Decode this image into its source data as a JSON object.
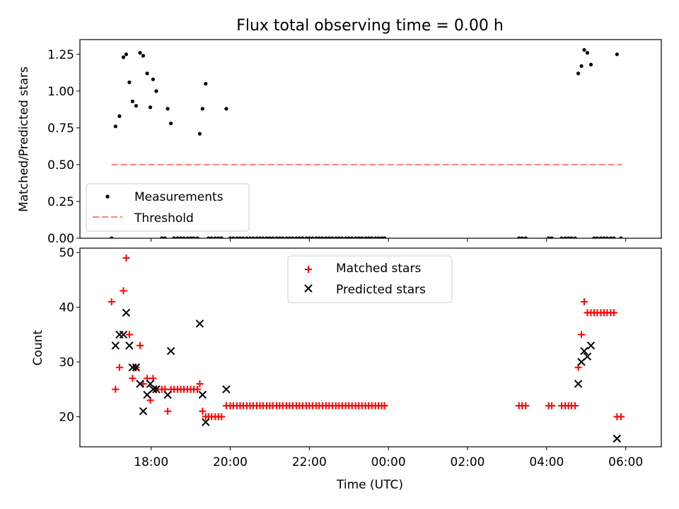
{
  "chart_data": [
    {
      "type": "scatter",
      "title": "Flux total observing time = 0.00 h",
      "xlabel": "",
      "ylabel": "Matched/Predicted stars",
      "xlim": [
        16.2,
        30.9
      ],
      "ylim": [
        0,
        1.35
      ],
      "y_ticks": [
        0.0,
        0.25,
        0.5,
        0.75,
        1.0,
        1.25
      ],
      "y_tick_labels": [
        "0.00",
        "0.25",
        "0.50",
        "0.75",
        "1.00",
        "1.25"
      ],
      "x_ticks": [
        18,
        20,
        22,
        24,
        26,
        28,
        30
      ],
      "legend_position": "lower-left",
      "series": [
        {
          "name": "Measurements",
          "marker": "dot",
          "color": "#000000",
          "points": [
            [
              17.0,
              0.0
            ],
            [
              17.1,
              0.76
            ],
            [
              17.2,
              0.83
            ],
            [
              17.3,
              1.23
            ],
            [
              17.37,
              1.25
            ],
            [
              17.45,
              1.06
            ],
            [
              17.53,
              0.93
            ],
            [
              17.62,
              0.9
            ],
            [
              17.72,
              1.26
            ],
            [
              17.8,
              1.24
            ],
            [
              17.9,
              1.12
            ],
            [
              17.98,
              0.89
            ],
            [
              18.05,
              1.08
            ],
            [
              18.13,
              1.0
            ],
            [
              18.27,
              0.0
            ],
            [
              18.35,
              0.0
            ],
            [
              18.42,
              0.88
            ],
            [
              18.5,
              0.78
            ],
            [
              18.58,
              0.0
            ],
            [
              18.67,
              0.0
            ],
            [
              18.75,
              0.0
            ],
            [
              18.83,
              0.0
            ],
            [
              18.92,
              0.0
            ],
            [
              19.0,
              0.0
            ],
            [
              19.08,
              0.0
            ],
            [
              19.17,
              0.0
            ],
            [
              19.23,
              0.71
            ],
            [
              19.3,
              0.88
            ],
            [
              19.38,
              1.05
            ],
            [
              19.45,
              0.0
            ],
            [
              19.53,
              0.0
            ],
            [
              19.62,
              0.0
            ],
            [
              19.7,
              0.0
            ],
            [
              19.78,
              0.0
            ],
            [
              19.9,
              0.88
            ],
            [
              20.0,
              0.0
            ],
            [
              20.08,
              0.0
            ],
            [
              20.17,
              0.0
            ],
            [
              20.25,
              0.0
            ],
            [
              20.33,
              0.0
            ],
            [
              20.42,
              0.0
            ],
            [
              20.5,
              0.0
            ],
            [
              20.58,
              0.0
            ],
            [
              20.67,
              0.0
            ],
            [
              20.75,
              0.0
            ],
            [
              20.83,
              0.0
            ],
            [
              20.92,
              0.0
            ],
            [
              21.0,
              0.0
            ],
            [
              21.08,
              0.0
            ],
            [
              21.17,
              0.0
            ],
            [
              21.25,
              0.0
            ],
            [
              21.33,
              0.0
            ],
            [
              21.42,
              0.0
            ],
            [
              21.5,
              0.0
            ],
            [
              21.58,
              0.0
            ],
            [
              21.67,
              0.0
            ],
            [
              21.75,
              0.0
            ],
            [
              21.83,
              0.0
            ],
            [
              21.92,
              0.0
            ],
            [
              22.0,
              0.0
            ],
            [
              22.08,
              0.0
            ],
            [
              22.17,
              0.0
            ],
            [
              22.25,
              0.0
            ],
            [
              22.33,
              0.0
            ],
            [
              22.42,
              0.0
            ],
            [
              22.5,
              0.0
            ],
            [
              22.58,
              0.0
            ],
            [
              22.67,
              0.0
            ],
            [
              22.75,
              0.0
            ],
            [
              22.83,
              0.0
            ],
            [
              22.92,
              0.0
            ],
            [
              23.0,
              0.0
            ],
            [
              23.08,
              0.0
            ],
            [
              23.17,
              0.0
            ],
            [
              23.25,
              0.0
            ],
            [
              23.33,
              0.0
            ],
            [
              23.42,
              0.0
            ],
            [
              23.5,
              0.0
            ],
            [
              23.58,
              0.0
            ],
            [
              23.67,
              0.0
            ],
            [
              23.75,
              0.0
            ],
            [
              23.83,
              0.0
            ],
            [
              23.9,
              0.0
            ],
            [
              27.3,
              0.0
            ],
            [
              27.38,
              0.0
            ],
            [
              27.47,
              0.0
            ],
            [
              28.05,
              0.0
            ],
            [
              28.13,
              0.0
            ],
            [
              28.38,
              0.0
            ],
            [
              28.47,
              0.0
            ],
            [
              28.55,
              0.0
            ],
            [
              28.63,
              0.0
            ],
            [
              28.72,
              0.0
            ],
            [
              28.8,
              1.12
            ],
            [
              28.88,
              1.17
            ],
            [
              28.95,
              1.28
            ],
            [
              29.03,
              1.26
            ],
            [
              29.12,
              1.18
            ],
            [
              29.2,
              0.0
            ],
            [
              29.28,
              0.0
            ],
            [
              29.37,
              0.0
            ],
            [
              29.45,
              0.0
            ],
            [
              29.53,
              0.0
            ],
            [
              29.62,
              0.0
            ],
            [
              29.7,
              0.0
            ],
            [
              29.78,
              1.25
            ],
            [
              29.88,
              0.0
            ]
          ]
        },
        {
          "name": "Threshold",
          "marker": "dashed-line",
          "color": "#ff7f7f",
          "points": [
            [
              17.0,
              0.5
            ],
            [
              29.9,
              0.5
            ]
          ]
        }
      ]
    },
    {
      "type": "scatter",
      "title": "",
      "xlabel": "Time (UTC)",
      "ylabel": "Count",
      "xlim": [
        16.2,
        30.9
      ],
      "ylim": [
        14.5,
        50.8
      ],
      "y_ticks": [
        20,
        30,
        40,
        50
      ],
      "y_tick_labels": [
        "20",
        "30",
        "40",
        "50"
      ],
      "x_ticks": [
        18,
        20,
        22,
        24,
        26,
        28,
        30
      ],
      "x_tick_labels": [
        "18:00",
        "20:00",
        "22:00",
        "00:00",
        "02:00",
        "04:00",
        "06:00"
      ],
      "legend_position": "top-center",
      "series": [
        {
          "name": "Matched stars",
          "marker": "plus",
          "color": "#ff0000",
          "points": [
            [
              17.0,
              41
            ],
            [
              17.1,
              25
            ],
            [
              17.2,
              29
            ],
            [
              17.3,
              43
            ],
            [
              17.37,
              49
            ],
            [
              17.45,
              35
            ],
            [
              17.53,
              27
            ],
            [
              17.62,
              29
            ],
            [
              17.72,
              33
            ],
            [
              17.8,
              26
            ],
            [
              17.9,
              27
            ],
            [
              17.98,
              23
            ],
            [
              18.05,
              27
            ],
            [
              18.13,
              25
            ],
            [
              18.27,
              25
            ],
            [
              18.35,
              25
            ],
            [
              18.42,
              21
            ],
            [
              18.5,
              25
            ],
            [
              18.58,
              25
            ],
            [
              18.67,
              25
            ],
            [
              18.75,
              25
            ],
            [
              18.83,
              25
            ],
            [
              18.92,
              25
            ],
            [
              19.0,
              25
            ],
            [
              19.08,
              25
            ],
            [
              19.17,
              25
            ],
            [
              19.23,
              26
            ],
            [
              19.3,
              21
            ],
            [
              19.38,
              20
            ],
            [
              19.45,
              20
            ],
            [
              19.53,
              20
            ],
            [
              19.62,
              20
            ],
            [
              19.7,
              20
            ],
            [
              19.78,
              20
            ],
            [
              19.9,
              22
            ],
            [
              20.0,
              22
            ],
            [
              20.08,
              22
            ],
            [
              20.17,
              22
            ],
            [
              20.25,
              22
            ],
            [
              20.33,
              22
            ],
            [
              20.42,
              22
            ],
            [
              20.5,
              22
            ],
            [
              20.58,
              22
            ],
            [
              20.67,
              22
            ],
            [
              20.75,
              22
            ],
            [
              20.83,
              22
            ],
            [
              20.92,
              22
            ],
            [
              21.0,
              22
            ],
            [
              21.08,
              22
            ],
            [
              21.17,
              22
            ],
            [
              21.25,
              22
            ],
            [
              21.33,
              22
            ],
            [
              21.42,
              22
            ],
            [
              21.5,
              22
            ],
            [
              21.58,
              22
            ],
            [
              21.67,
              22
            ],
            [
              21.75,
              22
            ],
            [
              21.83,
              22
            ],
            [
              21.92,
              22
            ],
            [
              22.0,
              22
            ],
            [
              22.08,
              22
            ],
            [
              22.17,
              22
            ],
            [
              22.25,
              22
            ],
            [
              22.33,
              22
            ],
            [
              22.42,
              22
            ],
            [
              22.5,
              22
            ],
            [
              22.58,
              22
            ],
            [
              22.67,
              22
            ],
            [
              22.75,
              22
            ],
            [
              22.83,
              22
            ],
            [
              22.92,
              22
            ],
            [
              23.0,
              22
            ],
            [
              23.08,
              22
            ],
            [
              23.17,
              22
            ],
            [
              23.25,
              22
            ],
            [
              23.33,
              22
            ],
            [
              23.42,
              22
            ],
            [
              23.5,
              22
            ],
            [
              23.58,
              22
            ],
            [
              23.67,
              22
            ],
            [
              23.75,
              22
            ],
            [
              23.83,
              22
            ],
            [
              23.9,
              22
            ],
            [
              27.3,
              22
            ],
            [
              27.38,
              22
            ],
            [
              27.47,
              22
            ],
            [
              28.05,
              22
            ],
            [
              28.13,
              22
            ],
            [
              28.38,
              22
            ],
            [
              28.47,
              22
            ],
            [
              28.55,
              22
            ],
            [
              28.63,
              22
            ],
            [
              28.72,
              22
            ],
            [
              28.8,
              29
            ],
            [
              28.88,
              35
            ],
            [
              28.95,
              41
            ],
            [
              29.03,
              39
            ],
            [
              29.12,
              39
            ],
            [
              29.2,
              39
            ],
            [
              29.28,
              39
            ],
            [
              29.37,
              39
            ],
            [
              29.45,
              39
            ],
            [
              29.53,
              39
            ],
            [
              29.62,
              39
            ],
            [
              29.7,
              39
            ],
            [
              29.78,
              20
            ],
            [
              29.88,
              20
            ]
          ]
        },
        {
          "name": "Predicted stars",
          "marker": "x",
          "color": "#000000",
          "points": [
            [
              17.1,
              33
            ],
            [
              17.2,
              35
            ],
            [
              17.3,
              35
            ],
            [
              17.37,
              39
            ],
            [
              17.45,
              33
            ],
            [
              17.53,
              29
            ],
            [
              17.62,
              29
            ],
            [
              17.72,
              26
            ],
            [
              17.8,
              21
            ],
            [
              17.9,
              24
            ],
            [
              17.98,
              26
            ],
            [
              18.05,
              25
            ],
            [
              18.13,
              25
            ],
            [
              18.42,
              24
            ],
            [
              18.5,
              32
            ],
            [
              19.23,
              37
            ],
            [
              19.3,
              24
            ],
            [
              19.38,
              19
            ],
            [
              19.9,
              25
            ],
            [
              28.8,
              26
            ],
            [
              28.88,
              30
            ],
            [
              28.95,
              32
            ],
            [
              29.03,
              31
            ],
            [
              29.12,
              33
            ],
            [
              29.78,
              16
            ]
          ]
        }
      ]
    }
  ]
}
